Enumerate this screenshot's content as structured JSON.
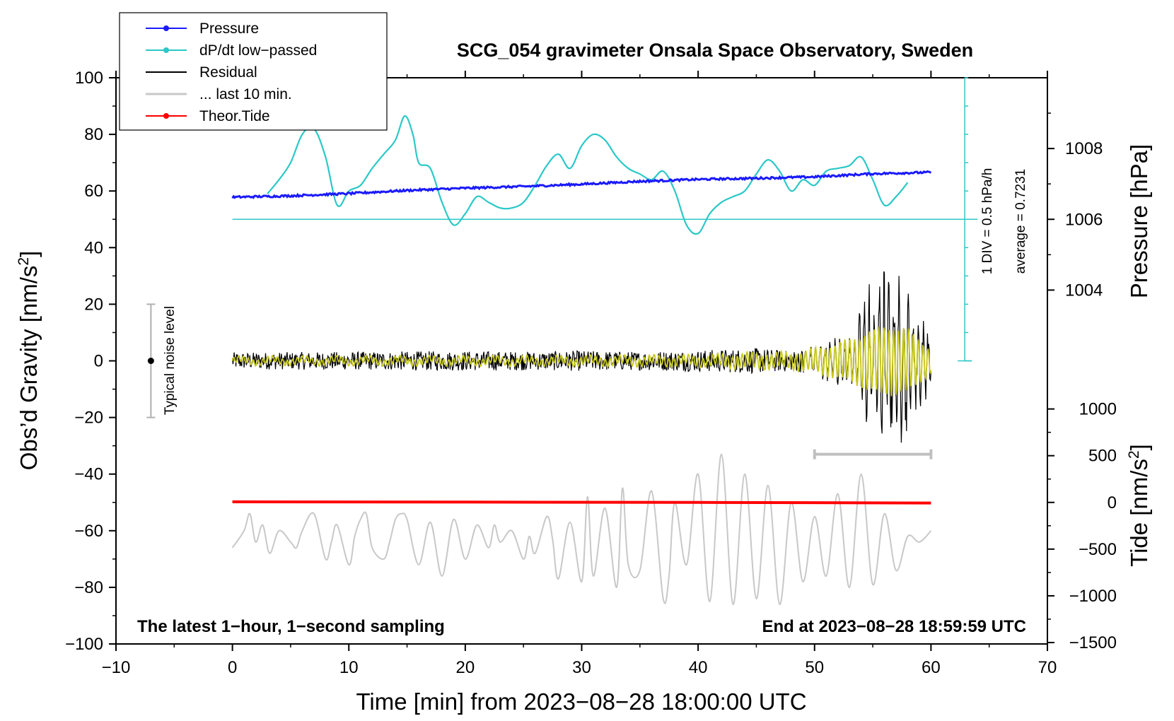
{
  "chart_data": {
    "type": "line",
    "title": "SCG_054 gravimeter Onsala Space Observatory, Sweden",
    "xlabel": "Time [min] from 2023−08−28 18:00:00 UTC",
    "ylabel_left_text": "Obs’d Gravity [nm/s",
    "ylabel_left_sup": "2",
    "ylabel_left_close": "]",
    "ylabel_pressure": "Pressure [hPa]",
    "ylabel_tide_text": "Tide [nm/s",
    "ylabel_tide_sup": "2",
    "ylabel_tide_close": "]",
    "xlim": [
      -10,
      70
    ],
    "ylim": [
      -100,
      100
    ],
    "x_ticks": [
      -10,
      0,
      10,
      20,
      30,
      40,
      50,
      60,
      70
    ],
    "x_tick_labels": [
      "−10",
      "0",
      "10",
      "20",
      "30",
      "40",
      "50",
      "60",
      "70"
    ],
    "y_ticks": [
      -100,
      -80,
      -60,
      -40,
      -20,
      0,
      20,
      40,
      60,
      80,
      100
    ],
    "y_tick_labels": [
      "−100",
      "−80",
      "−60",
      "−40",
      "−20",
      "0",
      "20",
      "40",
      "60",
      "80",
      "100"
    ],
    "pressure_axis": {
      "ticks": [
        1004,
        1006,
        1008
      ],
      "tick_labels": [
        "1004",
        "1006",
        "1008"
      ],
      "left_scale_map": [
        [
          1006,
          50
        ],
        [
          1008,
          75
        ]
      ]
    },
    "tide_axis": {
      "ticks": [
        1000,
        500,
        0,
        -500,
        -1000,
        -1500
      ],
      "tick_labels": [
        "1000",
        "500",
        "0",
        "−500",
        "−1000",
        "−1500"
      ],
      "left_scale_map": [
        [
          0,
          -50
        ],
        [
          1000,
          -17
        ]
      ]
    },
    "legend": [
      {
        "label": "Pressure",
        "color": "#1a1aff",
        "marker": true
      },
      {
        "label": "dP/dt low−passed",
        "color": "#2bc8c8",
        "marker": true
      },
      {
        "label": "Residual",
        "color": "#000000",
        "marker": false
      },
      {
        "label": "... last 10 min.",
        "color": "#c8c8c8",
        "marker": false
      },
      {
        "label": "Theor.Tide",
        "color": "#ff0000",
        "marker": true
      }
    ],
    "series": [
      {
        "name": "Pressure",
        "color": "#1a1aff",
        "x": [
          0,
          5,
          10,
          15,
          20,
          25,
          30,
          35,
          40,
          45,
          50,
          55,
          60
        ],
        "y": [
          57.8,
          58.3,
          59.1,
          60.2,
          61.0,
          61.6,
          62.4,
          63.4,
          64.1,
          64.5,
          65.0,
          66.1,
          66.6
        ]
      },
      {
        "name": "dP/dt low−passed",
        "color": "#2bc8c8",
        "x": [
          3,
          4,
          5,
          6,
          7,
          8,
          9,
          10,
          11,
          12,
          13,
          14,
          14.8,
          15.5,
          16,
          17,
          18,
          19,
          20,
          21,
          22,
          23,
          24,
          25,
          26,
          27,
          28,
          29,
          30,
          31,
          32,
          33,
          34,
          35,
          36,
          37,
          38,
          39,
          40,
          41,
          42,
          43,
          44,
          45,
          46,
          47,
          48,
          49,
          50,
          51,
          52,
          53,
          54,
          55,
          56,
          57,
          58
        ],
        "y": [
          59,
          64,
          70,
          80,
          82,
          72,
          55,
          60,
          62,
          68,
          73,
          78,
          86.5,
          80,
          70,
          68,
          56,
          48,
          52,
          58,
          56,
          54,
          54,
          56,
          62,
          69,
          73,
          68,
          76,
          80,
          78,
          72,
          68,
          66,
          64,
          67,
          60,
          48,
          45,
          52,
          56,
          58,
          60,
          66,
          71,
          67,
          60,
          64,
          62,
          67,
          68,
          69,
          72,
          64,
          55,
          58,
          63
        ]
      },
      {
        "name": "Residual",
        "color": "#000000",
        "envelope_x": [
          0,
          10,
          20,
          26,
          30,
          35,
          40,
          45,
          48,
          50,
          52,
          53.5,
          54.5,
          55.5,
          56,
          56.5,
          57,
          58,
          59,
          60
        ],
        "envelope_amp": [
          3,
          3.2,
          3.5,
          3.3,
          3.6,
          3.3,
          3.8,
          4.5,
          3.5,
          5,
          8,
          10,
          24,
          28,
          30,
          30,
          28,
          24,
          16,
          8
        ]
      },
      {
        "name": "Residual low−passed",
        "color": "#c8c81e",
        "envelope_x": [
          0,
          26,
          40,
          45,
          48,
          50,
          52,
          53.5,
          54.5,
          56,
          58,
          60
        ],
        "envelope_amp": [
          1,
          1.2,
          1.6,
          2.5,
          2.5,
          4,
          6,
          8,
          10,
          12,
          11,
          4
        ]
      },
      {
        "name": "... last 10 min.",
        "color": "#c8c8c8",
        "x": [
          0,
          1,
          1.5,
          2,
          2.6,
          3.2,
          4,
          5,
          5.5,
          6,
          7,
          8,
          8.5,
          9,
          10,
          10.5,
          11,
          11.5,
          12,
          13,
          13.5,
          14,
          14.5,
          15,
          16,
          17,
          18,
          19,
          20,
          21,
          22,
          22.5,
          23,
          24,
          25,
          25.5,
          26,
          27,
          27.5,
          28,
          29,
          30,
          30.5,
          31,
          32,
          33,
          33.5,
          34,
          35,
          36,
          37,
          37.5,
          38,
          39,
          40,
          41,
          42,
          43,
          44,
          45,
          46,
          47,
          48,
          49,
          50,
          51,
          52,
          53,
          54,
          55,
          56,
          57,
          58,
          59,
          60
        ],
        "y": [
          -66,
          -60,
          -54,
          -64,
          -58,
          -68,
          -60,
          -64,
          -66,
          -60,
          -54,
          -70,
          -64,
          -58,
          -72,
          -62,
          -56,
          -54,
          -66,
          -70,
          -64,
          -56,
          -54,
          -56,
          -72,
          -57,
          -76,
          -56,
          -70,
          -58,
          -66,
          -58,
          -64,
          -60,
          -70,
          -62,
          -68,
          -55,
          -63,
          -77,
          -57,
          -78,
          -48,
          -76,
          -52,
          -80,
          -45,
          -72,
          -74,
          -46,
          -84,
          -76,
          -50,
          -72,
          -40,
          -85,
          -33,
          -86,
          -40,
          -84,
          -44,
          -86,
          -50,
          -78,
          -55,
          -76,
          -47,
          -80,
          -40,
          -79,
          -54,
          -74,
          -62,
          -64,
          -60
        ]
      },
      {
        "name": "Theor.Tide",
        "color": "#ff0000",
        "x": [
          0,
          20,
          40,
          60
        ],
        "y": [
          -49.8,
          -49.9,
          -50.0,
          -50.2
        ]
      }
    ],
    "scale_bar_label": "1 DIV = 0.5 hPa/h",
    "average_label": "average = 0.7231",
    "noise_label": "Typical noise level",
    "noise_bar": {
      "x": -7,
      "y": 0,
      "low": -20,
      "high": 20
    },
    "last_10min_marker": {
      "from": 50,
      "to": 60,
      "y": -33
    },
    "bottom_left_note": "The latest 1−hour, 1−second sampling",
    "bottom_right_note": "End at 2023−08−28 18:59:59 UTC"
  }
}
